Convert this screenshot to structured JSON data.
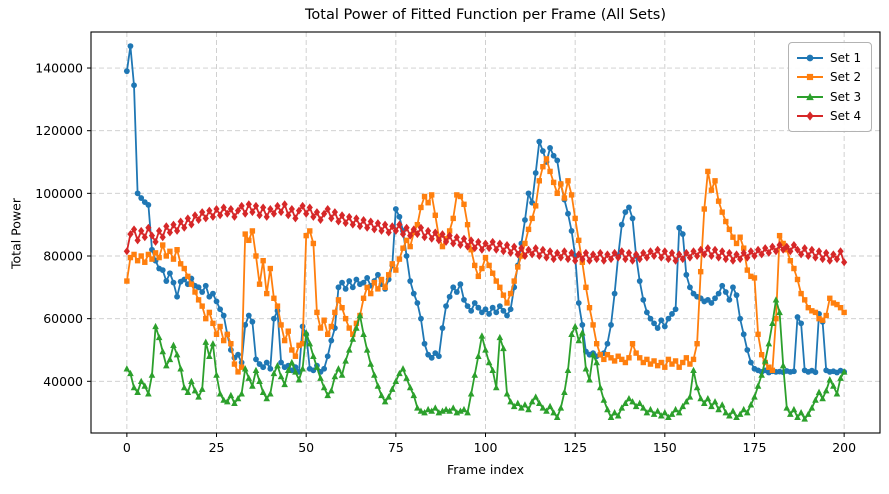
{
  "chart_data": {
    "type": "line",
    "title": "Total Power of Fitted Function per Frame (All Sets)",
    "xlabel": "Frame index",
    "ylabel": "Total Power",
    "xlim": [
      -10,
      210
    ],
    "ylim": [
      23500,
      151500
    ],
    "xticks": [
      0,
      25,
      50,
      75,
      100,
      125,
      150,
      175,
      200
    ],
    "yticks": [
      40000,
      60000,
      80000,
      100000,
      120000,
      140000
    ],
    "grid": true,
    "grid_color": "#cccccc",
    "spine_color": "#000000",
    "legend_position": "upper right",
    "x_start": 0,
    "x_step": 1,
    "series": [
      {
        "name": "Set 1",
        "color": "#1f77b4",
        "marker": "circle",
        "values": [
          139000,
          147000,
          134500,
          100000,
          98500,
          97200,
          96300,
          82000,
          78500,
          76000,
          75500,
          72000,
          74500,
          71500,
          67000,
          71800,
          72500,
          71000,
          72800,
          70500,
          70000,
          68500,
          70500,
          67000,
          68000,
          65500,
          63000,
          61000,
          55000,
          50000,
          47500,
          48500,
          46000,
          58000,
          61000,
          59000,
          47000,
          45500,
          44500,
          46000,
          44000,
          60000,
          62500,
          46000,
          44500,
          45000,
          43500,
          44500,
          43000,
          57500,
          55000,
          44000,
          43500,
          45000,
          43000,
          44000,
          48000,
          53000,
          57000,
          70000,
          71500,
          69500,
          72000,
          70000,
          72500,
          71000,
          71500,
          73000,
          70500,
          72000,
          74000,
          71000,
          69500,
          72500,
          77000,
          95000,
          92500,
          88000,
          80000,
          72000,
          68000,
          65000,
          60000,
          52000,
          48500,
          47500,
          49000,
          48000,
          57000,
          64000,
          67000,
          70000,
          68500,
          71000,
          66000,
          64000,
          62500,
          65000,
          63500,
          62000,
          63000,
          61500,
          63500,
          62000,
          64000,
          62500,
          61000,
          63000,
          70000,
          77000,
          84000,
          91500,
          100000,
          97000,
          106500,
          116500,
          113500,
          110000,
          114500,
          112000,
          110500,
          103000,
          98000,
          93500,
          88000,
          80000,
          65000,
          58000,
          49500,
          48500,
          49000,
          48000,
          48500,
          49000,
          52000,
          58000,
          68000,
          80000,
          90000,
          94000,
          95500,
          92000,
          80000,
          72000,
          66000,
          62000,
          60000,
          58500,
          57000,
          59500,
          57500,
          60000,
          61500,
          63000,
          89000,
          87000,
          74000,
          70000,
          68000,
          67000,
          66500,
          65500,
          66000,
          65000,
          66500,
          68000,
          70500,
          68500,
          66000,
          70000,
          67500,
          60000,
          55000,
          50000,
          46000,
          44000,
          43500,
          43000,
          43500,
          42800,
          43200,
          43000,
          43100,
          42900,
          43300,
          43000,
          43200,
          60500,
          58500,
          43500,
          43000,
          43400,
          42900,
          61500,
          59000,
          43500,
          43000,
          43200,
          42800,
          43400,
          43000
        ]
      },
      {
        "name": "Set 2",
        "color": "#ff7f0e",
        "marker": "square",
        "values": [
          72000,
          79500,
          80500,
          78500,
          80000,
          78000,
          80500,
          79000,
          81000,
          79500,
          83500,
          80000,
          81500,
          79000,
          82000,
          77500,
          76000,
          73500,
          71000,
          68500,
          66000,
          64000,
          60000,
          62000,
          58500,
          55000,
          57500,
          53000,
          55000,
          52000,
          45500,
          43000,
          44500,
          87000,
          85000,
          88000,
          80000,
          71000,
          78500,
          68000,
          76000,
          66500,
          64000,
          58000,
          53000,
          56000,
          50000,
          48000,
          51500,
          52000,
          86500,
          88000,
          84000,
          62000,
          57000,
          59500,
          55000,
          57500,
          62000,
          66000,
          63500,
          60000,
          57000,
          55000,
          58500,
          61000,
          66500,
          70000,
          68000,
          71500,
          69500,
          72500,
          70000,
          74000,
          77500,
          75500,
          79000,
          82500,
          85000,
          83000,
          87500,
          90000,
          95500,
          99000,
          97000,
          99500,
          93000,
          86000,
          83000,
          85500,
          88000,
          92000,
          99500,
          99000,
          96500,
          90000,
          82000,
          77000,
          73500,
          76000,
          79500,
          77000,
          74500,
          72000,
          70000,
          67500,
          65000,
          68000,
          72000,
          76500,
          80000,
          84000,
          88500,
          92000,
          96000,
          104000,
          108500,
          111000,
          107000,
          103500,
          100000,
          103000,
          98500,
          104000,
          99500,
          92000,
          85000,
          78000,
          70000,
          63500,
          58000,
          52000,
          48500,
          47000,
          48500,
          47500,
          46500,
          48000,
          47000,
          46000,
          47500,
          52000,
          49000,
          47500,
          46000,
          47000,
          45500,
          46500,
          45000,
          46000,
          44500,
          47000,
          45500,
          46500,
          44500,
          46000,
          47500,
          45500,
          47000,
          52000,
          75000,
          95000,
          107000,
          101000,
          104000,
          97500,
          94000,
          91000,
          88500,
          86000,
          84000,
          86000,
          82500,
          75500,
          73500,
          73000,
          55000,
          48500,
          46000,
          44500,
          43500,
          60000,
          86500,
          84000,
          82000,
          78500,
          76000,
          72500,
          68000,
          66000,
          63500,
          62500,
          62000,
          60000,
          59500,
          61000,
          66500,
          65000,
          64500,
          63500,
          62000
        ]
      },
      {
        "name": "Set 3",
        "color": "#2ca02c",
        "marker": "triangle",
        "values": [
          44000,
          42500,
          38000,
          36500,
          40000,
          38500,
          36000,
          42000,
          57500,
          54000,
          49500,
          45000,
          47000,
          51500,
          48500,
          44000,
          38000,
          36500,
          40000,
          37000,
          35000,
          37500,
          52500,
          48000,
          52000,
          42000,
          36000,
          34000,
          33500,
          35500,
          33000,
          34500,
          36000,
          44000,
          41000,
          38500,
          43500,
          40000,
          36500,
          34500,
          36000,
          42500,
          45000,
          41500,
          39000,
          43500,
          46000,
          43000,
          40500,
          44000,
          55500,
          52000,
          48000,
          44500,
          41000,
          38000,
          35500,
          37000,
          41500,
          44000,
          42000,
          46500,
          50000,
          53500,
          57000,
          61000,
          55000,
          50000,
          45500,
          42000,
          38500,
          35500,
          33500,
          35000,
          37500,
          40000,
          42500,
          44000,
          41000,
          38000,
          35500,
          31500,
          30500,
          30000,
          31000,
          30500,
          31500,
          30000,
          30500,
          31000,
          30500,
          31500,
          30000,
          30500,
          31000,
          30000,
          36000,
          42000,
          48000,
          54500,
          50000,
          46000,
          43500,
          38000,
          54000,
          50500,
          36000,
          33500,
          32000,
          33000,
          31500,
          32500,
          31000,
          33500,
          35000,
          33000,
          31500,
          30500,
          32000,
          30000,
          28500,
          31500,
          36500,
          43500,
          55000,
          57500,
          53000,
          55500,
          44000,
          40500,
          48500,
          46000,
          38000,
          34000,
          31000,
          28500,
          30000,
          29000,
          31500,
          33000,
          34500,
          33500,
          32000,
          33000,
          31500,
          30000,
          31000,
          29500,
          30500,
          29000,
          30000,
          28500,
          29500,
          31000,
          30000,
          32000,
          33500,
          35000,
          43500,
          38000,
          34500,
          33000,
          34500,
          32000,
          33500,
          31000,
          32500,
          30000,
          29000,
          30500,
          28500,
          29500,
          31000,
          30000,
          32500,
          35000,
          38500,
          42000,
          46500,
          52000,
          58500,
          66000,
          62000,
          45000,
          31500,
          29500,
          31000,
          28500,
          30000,
          28000,
          29500,
          31500,
          34000,
          36500,
          34500,
          37000,
          40500,
          38500,
          36000,
          41000,
          43000
        ]
      },
      {
        "name": "Set 4",
        "color": "#d62728",
        "marker": "diamond",
        "values": [
          81500,
          87000,
          88500,
          85000,
          88000,
          86000,
          89000,
          86500,
          84500,
          88000,
          86000,
          89500,
          87500,
          90000,
          88000,
          91000,
          89000,
          92000,
          90000,
          93000,
          91500,
          94000,
          92000,
          94500,
          92500,
          95000,
          93000,
          95500,
          93500,
          95000,
          92500,
          94500,
          96000,
          93500,
          96500,
          94000,
          96000,
          93000,
          95500,
          92500,
          95000,
          93500,
          96000,
          94000,
          96500,
          93000,
          95000,
          92000,
          94500,
          96000,
          93500,
          95500,
          92500,
          94000,
          91500,
          93500,
          95000,
          92000,
          94000,
          91000,
          93000,
          90500,
          92500,
          90000,
          92000,
          89500,
          91500,
          89000,
          91000,
          88500,
          90500,
          88000,
          90000,
          87500,
          89500,
          88000,
          90000,
          87000,
          89000,
          86500,
          88500,
          87000,
          89000,
          86000,
          88000,
          85500,
          87500,
          85000,
          87000,
          84500,
          86500,
          84000,
          86000,
          83500,
          85500,
          83000,
          85000,
          82500,
          84500,
          82000,
          84000,
          82500,
          84500,
          82000,
          84000,
          81500,
          83500,
          81000,
          83000,
          80500,
          82500,
          80000,
          82000,
          80500,
          82500,
          80000,
          82000,
          79500,
          81500,
          79000,
          81000,
          79500,
          81500,
          79000,
          81000,
          78500,
          80500,
          79000,
          81000,
          78500,
          80500,
          79000,
          81000,
          78500,
          80500,
          79000,
          81000,
          79500,
          81500,
          79000,
          81000,
          78500,
          80500,
          79000,
          81000,
          79500,
          81500,
          80000,
          82000,
          79500,
          81500,
          79000,
          81000,
          78500,
          80500,
          79000,
          81000,
          79500,
          81500,
          80000,
          82000,
          80500,
          82500,
          80000,
          82000,
          79500,
          81500,
          79000,
          81000,
          78500,
          80500,
          79000,
          81000,
          79500,
          81500,
          80000,
          82000,
          80500,
          82500,
          81000,
          83000,
          81500,
          83500,
          82000,
          83000,
          81500,
          83500,
          82000,
          80500,
          82500,
          80000,
          82000,
          79500,
          81500,
          79000,
          81000,
          78500,
          80500,
          79000,
          81500,
          78000
        ]
      }
    ]
  }
}
